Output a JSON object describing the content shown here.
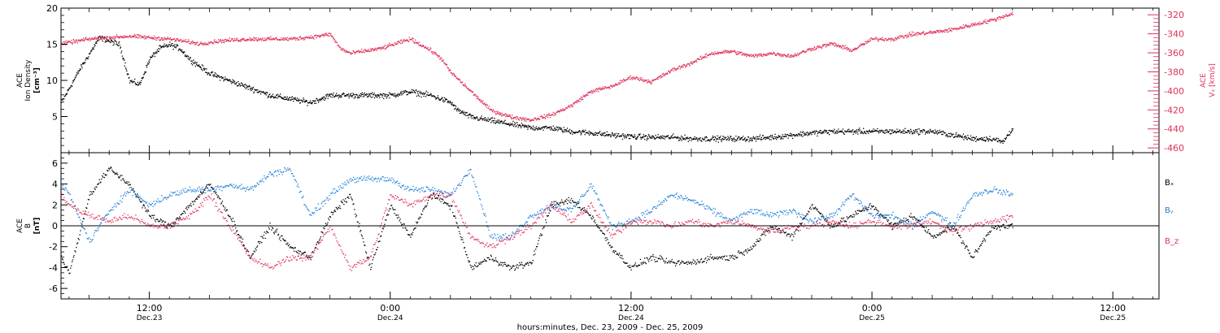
{
  "figure": {
    "xlabel": "hours:minutes, Dec. 23, 2009 - Dec. 25, 2009",
    "x_ticks": [
      {
        "time": "12:00",
        "date": "Dec.23",
        "hours": 12
      },
      {
        "time": "0:00",
        "date": "Dec.24",
        "hours": 24
      },
      {
        "time": "12:00",
        "date": "Dec.24",
        "hours": 36
      },
      {
        "time": "0:00",
        "date": "Dec.25",
        "hours": 48
      },
      {
        "time": "12:00",
        "date": "Dec.25",
        "hours": 60
      }
    ],
    "x_range_hours_from_dec23": [
      7.6,
      62.3
    ],
    "data_end_hours": 55.0
  },
  "chart_data": [
    {
      "type": "scatter",
      "panel": "top",
      "ylabel_left": [
        "ACE",
        "Ion Density",
        "[cm⁻³]"
      ],
      "ylabel_right": [
        "ACE",
        "Vₓ [km/s]"
      ],
      "ylim_left": [
        0,
        20
      ],
      "ylim_right": [
        -465,
        -313
      ],
      "yticks_left": [
        5,
        10,
        15,
        20
      ],
      "yticks_right": [
        -320,
        -340,
        -360,
        -380,
        -400,
        -420,
        -440,
        -460
      ],
      "colors": {
        "density": "#000000",
        "vx": "#e0305a"
      },
      "series": [
        {
          "axis": "left",
          "x_hours": [
            7.6,
            8.5,
            9.5,
            10.5,
            11.0,
            11.5,
            12.0,
            12.5,
            13.0,
            13.5,
            14.0,
            15.0,
            16.0,
            17.0,
            18.0,
            19.0,
            20.0,
            21.0,
            22.0,
            23.0,
            24.0,
            25.0,
            26.0,
            27.0,
            27.3,
            28.0,
            29.0,
            30.0,
            31.0,
            32.0,
            33.0,
            34.0,
            35.0,
            36.0,
            37.0,
            38.0,
            39.0,
            40.0,
            41.0,
            42.0,
            43.0,
            44.0,
            45.0,
            46.0,
            47.0,
            48.0,
            49.0,
            50.0,
            51.0,
            52.0,
            53.0,
            54.0,
            54.5,
            55.0
          ],
          "values": [
            7.0,
            11.5,
            16.0,
            15.0,
            10.0,
            9.5,
            13.0,
            14.5,
            15.0,
            14.5,
            13.0,
            11.0,
            10.0,
            9.0,
            8.0,
            7.5,
            7.0,
            8.0,
            8.0,
            8.0,
            8.0,
            8.5,
            8.0,
            7.0,
            6.0,
            5.0,
            4.5,
            4.0,
            3.5,
            3.5,
            3.0,
            2.8,
            2.5,
            2.3,
            2.2,
            2.2,
            2.0,
            2.0,
            2.0,
            2.0,
            2.2,
            2.5,
            2.8,
            3.0,
            3.0,
            3.0,
            3.0,
            3.0,
            3.0,
            2.5,
            2.0,
            2.0,
            1.5,
            3.5
          ]
        },
        {
          "axis": "right",
          "x_hours": [
            7.6,
            9.0,
            11.0,
            13.0,
            14.5,
            15.5,
            17.0,
            19.0,
            20.0,
            21.0,
            21.5,
            22.0,
            23.5,
            25.0,
            26.0,
            26.5,
            27.0,
            28.0,
            29.0,
            30.0,
            31.0,
            32.0,
            33.0,
            34.0,
            35.0,
            36.0,
            37.0,
            38.0,
            39.0,
            40.0,
            41.0,
            42.0,
            43.0,
            44.0,
            45.0,
            46.0,
            47.0,
            48.0,
            49.0,
            50.0,
            51.0,
            52.0,
            53.0,
            54.0,
            55.0
          ],
          "values": [
            -350,
            -345,
            -342,
            -345,
            -350,
            -347,
            -345,
            -345,
            -343,
            -340,
            -355,
            -360,
            -355,
            -345,
            -357,
            -365,
            -380,
            -400,
            -420,
            -427,
            -430,
            -425,
            -415,
            -400,
            -395,
            -385,
            -390,
            -378,
            -370,
            -360,
            -358,
            -363,
            -360,
            -363,
            -355,
            -350,
            -357,
            -345,
            -345,
            -340,
            -338,
            -335,
            -330,
            -325,
            -318
          ]
        }
      ]
    },
    {
      "type": "scatter",
      "panel": "bottom",
      "ylabel_left": [
        "ACE",
        "B",
        "[nT]"
      ],
      "ylim": [
        -7,
        7
      ],
      "yticks": [
        6,
        4,
        2,
        0,
        -2,
        -4,
        -6
      ],
      "zero_line": true,
      "series": [
        {
          "name": "Bₓ",
          "color": "#000000",
          "x_hours": [
            7.6,
            8.0,
            9.0,
            10.0,
            11.0,
            12.0,
            13.0,
            14.0,
            15.0,
            16.0,
            17.0,
            18.0,
            19.0,
            20.0,
            21.0,
            22.0,
            23.0,
            24.0,
            25.0,
            26.0,
            27.0,
            28.0,
            29.0,
            30.0,
            31.0,
            32.0,
            33.0,
            34.0,
            35.0,
            36.0,
            37.0,
            38.0,
            39.0,
            40.0,
            41.0,
            42.0,
            43.0,
            44.0,
            45.0,
            46.0,
            47.0,
            48.0,
            49.0,
            50.0,
            51.0,
            52.0,
            53.0,
            54.0,
            55.0
          ],
          "values": [
            -3.0,
            -4.5,
            3.0,
            5.5,
            4.0,
            1.0,
            0.0,
            2.0,
            4.0,
            1.0,
            -3.0,
            0.0,
            -2.0,
            -3.0,
            1.0,
            3.0,
            -4.0,
            2.0,
            -1.0,
            3.0,
            2.0,
            -4.0,
            -3.0,
            -4.0,
            -3.5,
            2.0,
            2.5,
            1.0,
            -2.0,
            -4.0,
            -3.0,
            -3.5,
            -3.5,
            -3.0,
            -3.0,
            -2.0,
            0.0,
            -1.0,
            2.0,
            0.0,
            1.0,
            2.0,
            0.0,
            1.0,
            -1.0,
            0.0,
            -3.0,
            0.0,
            0.0
          ]
        },
        {
          "name": "Bᵧ",
          "color": "#1e7fd6",
          "x_hours": [
            7.6,
            8.0,
            9.0,
            10.0,
            11.0,
            12.0,
            13.0,
            14.0,
            15.0,
            16.0,
            17.0,
            18.0,
            19.0,
            20.0,
            21.0,
            22.0,
            23.0,
            24.0,
            25.0,
            26.0,
            27.0,
            28.0,
            29.0,
            30.0,
            31.0,
            32.0,
            33.0,
            34.0,
            35.0,
            36.0,
            37.0,
            38.0,
            39.0,
            40.0,
            41.0,
            42.0,
            43.0,
            44.0,
            45.0,
            46.0,
            47.0,
            48.0,
            49.0,
            50.0,
            51.0,
            52.0,
            53.0,
            54.0,
            55.0
          ],
          "values": [
            4.0,
            3.0,
            -1.5,
            1.5,
            3.5,
            2.0,
            3.0,
            3.5,
            3.5,
            4.0,
            3.5,
            5.0,
            5.5,
            1.0,
            3.0,
            4.5,
            4.5,
            4.5,
            3.5,
            3.5,
            3.0,
            5.5,
            -1.0,
            -1.0,
            1.0,
            2.0,
            1.5,
            4.0,
            0.0,
            0.5,
            1.5,
            3.0,
            2.5,
            1.5,
            0.5,
            1.5,
            1.0,
            1.5,
            0.5,
            1.0,
            3.0,
            1.0,
            1.0,
            0.0,
            1.5,
            0.0,
            3.0,
            3.5,
            3.0
          ]
        },
        {
          "name": "B_z",
          "color": "#e0305a",
          "x_hours": [
            7.6,
            8.0,
            9.0,
            10.0,
            11.0,
            12.0,
            13.0,
            14.0,
            15.0,
            16.0,
            17.0,
            18.0,
            19.0,
            20.0,
            21.0,
            22.0,
            23.0,
            24.0,
            25.0,
            26.0,
            27.0,
            28.0,
            29.0,
            30.0,
            31.0,
            32.0,
            33.0,
            34.0,
            35.0,
            36.0,
            37.0,
            38.0,
            39.0,
            40.0,
            41.0,
            42.0,
            43.0,
            44.0,
            45.0,
            46.0,
            47.0,
            48.0,
            49.0,
            50.0,
            51.0,
            52.0,
            53.0,
            54.0,
            55.0
          ],
          "values": [
            3.0,
            2.0,
            1.0,
            0.5,
            1.0,
            0.0,
            0.0,
            1.0,
            3.0,
            0.0,
            -3.0,
            -4.0,
            -3.0,
            -3.0,
            0.0,
            -4.0,
            -3.0,
            3.0,
            2.0,
            3.0,
            3.0,
            -1.0,
            -2.0,
            -1.0,
            0.0,
            2.0,
            0.5,
            2.0,
            -1.0,
            0.5,
            0.5,
            0.0,
            0.5,
            0.0,
            0.5,
            0.0,
            -0.5,
            0.0,
            0.0,
            0.5,
            0.0,
            0.5,
            0.0,
            0.0,
            0.5,
            -0.5,
            0.0,
            0.5,
            1.0
          ]
        }
      ]
    }
  ]
}
